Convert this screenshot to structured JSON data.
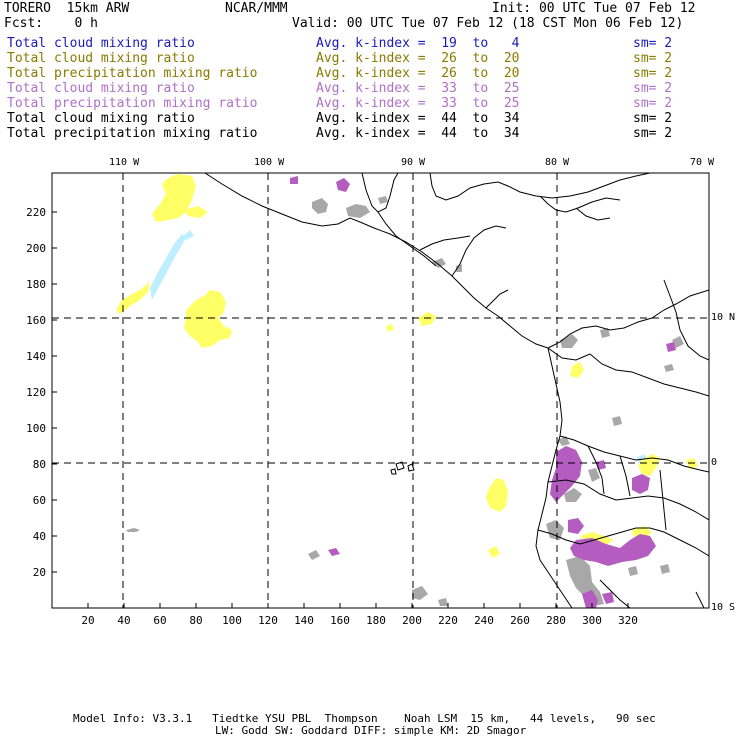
{
  "header": {
    "model": "TORERO  15km ARW",
    "org": "NCAR/MMM",
    "init": "Init: 00 UTC Tue 07 Feb 12",
    "fcst": "Fcst:    0 h",
    "valid": "Valid: 00 UTC Tue 07 Feb 12 (18 CST Mon 06 Feb 12)"
  },
  "legend": [
    {
      "field": "Total cloud mixing ratio",
      "kindex": "Avg. k-index =  19  to   4",
      "sm": "sm= 2",
      "color": "#1a1ab8"
    },
    {
      "field": "Total cloud mixing ratio",
      "kindex": "Avg. k-index =  26  to  20",
      "sm": "sm= 2",
      "color": "#8a7a00"
    },
    {
      "field": "Total precipitation mixing ratio",
      "kindex": "Avg. k-index =  26  to  20",
      "sm": "sm= 2",
      "color": "#8a7a00"
    },
    {
      "field": "Total cloud mixing ratio",
      "kindex": "Avg. k-index =  33  to  25",
      "sm": "sm= 2",
      "color": "#b070c8"
    },
    {
      "field": "Total precipitation mixing ratio",
      "kindex": "Avg. k-index =  33  to  25",
      "sm": "sm= 2",
      "color": "#b070c8"
    },
    {
      "field": "Total cloud mixing ratio",
      "kindex": "Avg. k-index =  44  to  34",
      "sm": "sm= 2",
      "color": "#000000"
    },
    {
      "field": "Total precipitation mixing ratio",
      "kindex": "Avg. k-index =  44  to  34",
      "sm": "sm= 2",
      "color": "#000000"
    }
  ],
  "axes": {
    "lon_labels": [
      "110 W",
      "100 W",
      "90 W",
      "80 W",
      "70 W"
    ],
    "lat_labels": [
      "10 N",
      "0",
      "10 S"
    ],
    "x_ticks": [
      "20",
      "40",
      "60",
      "80",
      "100",
      "120",
      "140",
      "160",
      "180",
      "200",
      "220",
      "240",
      "260",
      "280",
      "300",
      "320"
    ],
    "y_ticks": [
      "220",
      "200",
      "180",
      "160",
      "140",
      "120",
      "100",
      "80",
      "60",
      "40",
      "20"
    ]
  },
  "colors": {
    "yellow": "#ffff66",
    "cyan": "#bfeeff",
    "purple": "#b45cc0",
    "gray": "#a8a8a8",
    "coast": "#000000"
  },
  "footer": {
    "line1": "Model Info: V3.3.1   Tiedtke YSU PBL  Thompson    Noah LSM  15 km,   44 levels,   90 sec",
    "line2": "LW: Godd SW: Goddard DIFF: simple KM: 2D Smagor"
  }
}
